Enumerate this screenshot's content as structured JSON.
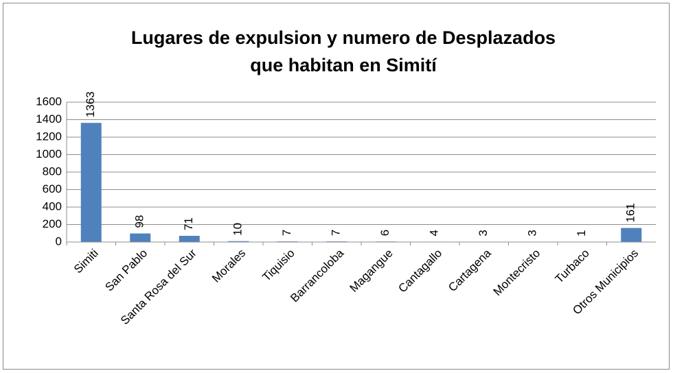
{
  "chart_data": {
    "type": "bar",
    "title": [
      "Lugares de expulsion y numero de Desplazados",
      "que habitan en Simití"
    ],
    "categories": [
      "Simiti",
      "San Pablo",
      "Santa Rosa del Sur",
      "Morales",
      "Tiquisio",
      "Barrancoloba",
      "Magangue",
      "Cantagallo",
      "Cartagena",
      "Montecristo",
      "Turbaco",
      "Otros Municipios"
    ],
    "values": [
      1363,
      98,
      71,
      10,
      7,
      7,
      6,
      4,
      3,
      3,
      1,
      161
    ],
    "color": "#4f81bd",
    "ylim": [
      0,
      1600
    ],
    "yticks": [
      0,
      200,
      400,
      600,
      800,
      1000,
      1200,
      1400,
      1600
    ],
    "grid": true
  }
}
